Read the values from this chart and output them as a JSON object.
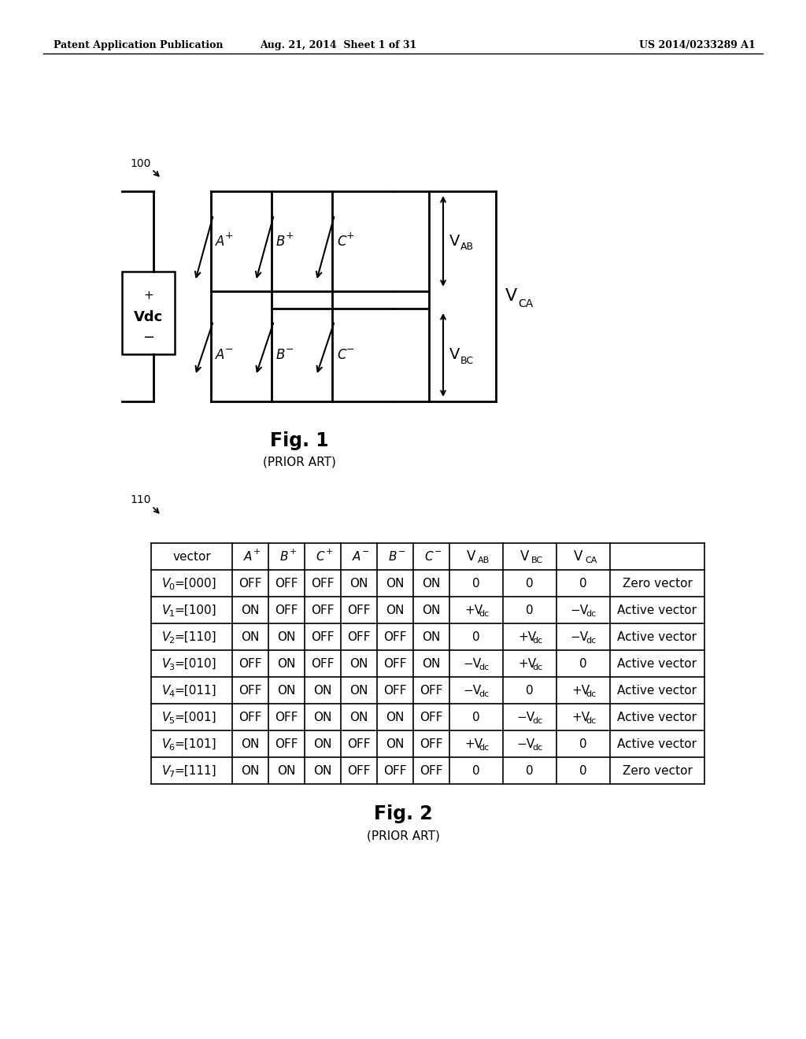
{
  "header_left": "Patent Application Publication",
  "header_mid": "Aug. 21, 2014  Sheet 1 of 31",
  "header_right": "US 2014/0233289 A1",
  "fig1_label": "Fig. 1",
  "fig1_sublabel": "(PRIOR ART)",
  "fig2_label": "Fig. 2",
  "fig2_sublabel": "(PRIOR ART)",
  "background_color": "#ffffff",
  "line_color": "#000000",
  "text_color": "#000000",
  "sw_vectors": [
    "000",
    "100",
    "110",
    "010",
    "011",
    "001",
    "101",
    "111"
  ],
  "sw_Aplus": [
    "OFF",
    "ON",
    "ON",
    "OFF",
    "OFF",
    "OFF",
    "ON",
    "ON"
  ],
  "sw_Bplus": [
    "OFF",
    "OFF",
    "ON",
    "ON",
    "ON",
    "OFF",
    "OFF",
    "ON"
  ],
  "sw_Cplus": [
    "OFF",
    "OFF",
    "OFF",
    "OFF",
    "ON",
    "ON",
    "ON",
    "ON"
  ],
  "sw_Aminus": [
    "ON",
    "OFF",
    "OFF",
    "ON",
    "ON",
    "ON",
    "OFF",
    "OFF"
  ],
  "sw_Bminus": [
    "ON",
    "ON",
    "OFF",
    "OFF",
    "OFF",
    "ON",
    "ON",
    "OFF"
  ],
  "sw_Cminus": [
    "ON",
    "ON",
    "ON",
    "ON",
    "OFF",
    "OFF",
    "OFF",
    "OFF"
  ],
  "sw_VAB": [
    "0",
    "+Vdc",
    "0",
    "-Vdc",
    "-Vdc",
    "0",
    "+Vdc",
    "0"
  ],
  "sw_VBC": [
    "0",
    "0",
    "+Vdc",
    "+Vdc",
    "0",
    "-Vdc",
    "-Vdc",
    "0"
  ],
  "sw_VCA": [
    "0",
    "-Vdc",
    "-Vdc",
    "0",
    "+Vdc",
    "+Vdc",
    "0",
    "0"
  ],
  "sw_type": [
    "Zero vector",
    "Active vector",
    "Active vector",
    "Active vector",
    "Active vector",
    "Active vector",
    "Active vector",
    "Zero vector"
  ]
}
